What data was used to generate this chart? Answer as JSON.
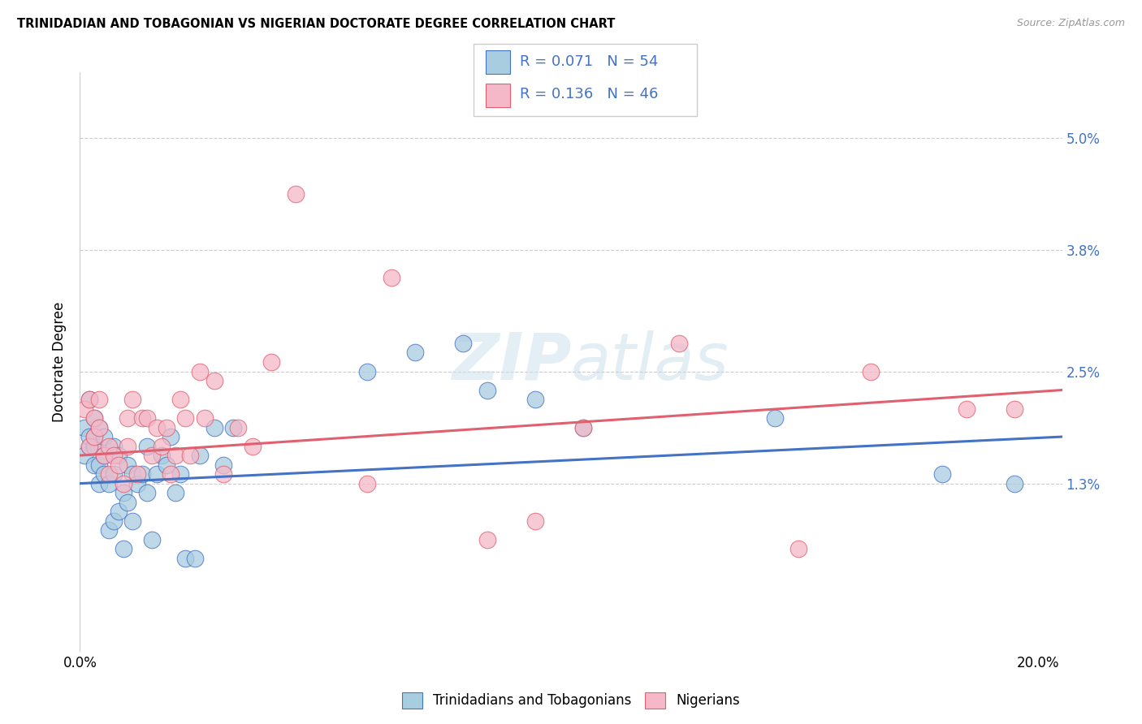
{
  "title": "TRINIDADIAN AND TOBAGONIAN VS NIGERIAN DOCTORATE DEGREE CORRELATION CHART",
  "source": "Source: ZipAtlas.com",
  "ylabel": "Doctorate Degree",
  "xlim": [
    0.0,
    0.205
  ],
  "ylim": [
    -0.005,
    0.057
  ],
  "ytick_vals": [
    0.013,
    0.025,
    0.038,
    0.05
  ],
  "ytick_labels": [
    "1.3%",
    "2.5%",
    "3.8%",
    "5.0%"
  ],
  "xtick_vals": [
    0.0,
    0.04,
    0.08,
    0.12,
    0.16,
    0.2
  ],
  "xtick_labels": [
    "0.0%",
    "",
    "",
    "",
    "",
    "20.0%"
  ],
  "legend_r1": "0.071",
  "legend_n1": "54",
  "legend_r2": "0.136",
  "legend_n2": "46",
  "blue_dot_color": "#a8cce0",
  "pink_dot_color": "#f4b8c8",
  "blue_line_color": "#4472c4",
  "pink_line_color": "#e06070",
  "label_color": "#4472c4",
  "watermark_color": "#d8e8f0",
  "blue_scatter_x": [
    0.001,
    0.001,
    0.002,
    0.002,
    0.002,
    0.003,
    0.003,
    0.003,
    0.003,
    0.004,
    0.004,
    0.004,
    0.005,
    0.005,
    0.005,
    0.006,
    0.006,
    0.007,
    0.007,
    0.007,
    0.008,
    0.008,
    0.009,
    0.009,
    0.01,
    0.01,
    0.011,
    0.011,
    0.012,
    0.013,
    0.014,
    0.014,
    0.015,
    0.016,
    0.017,
    0.018,
    0.019,
    0.02,
    0.021,
    0.022,
    0.024,
    0.025,
    0.028,
    0.03,
    0.032,
    0.06,
    0.07,
    0.08,
    0.085,
    0.095,
    0.105,
    0.145,
    0.18,
    0.195
  ],
  "blue_scatter_y": [
    0.016,
    0.019,
    0.017,
    0.018,
    0.022,
    0.015,
    0.017,
    0.018,
    0.02,
    0.013,
    0.015,
    0.019,
    0.014,
    0.016,
    0.018,
    0.008,
    0.013,
    0.009,
    0.014,
    0.017,
    0.01,
    0.016,
    0.006,
    0.012,
    0.011,
    0.015,
    0.009,
    0.014,
    0.013,
    0.014,
    0.012,
    0.017,
    0.007,
    0.014,
    0.016,
    0.015,
    0.018,
    0.012,
    0.014,
    0.005,
    0.005,
    0.016,
    0.019,
    0.015,
    0.019,
    0.025,
    0.027,
    0.028,
    0.023,
    0.022,
    0.019,
    0.02,
    0.014,
    0.013
  ],
  "pink_scatter_x": [
    0.001,
    0.002,
    0.002,
    0.003,
    0.003,
    0.004,
    0.004,
    0.005,
    0.006,
    0.006,
    0.007,
    0.008,
    0.009,
    0.01,
    0.01,
    0.011,
    0.012,
    0.013,
    0.014,
    0.015,
    0.016,
    0.017,
    0.018,
    0.019,
    0.02,
    0.021,
    0.022,
    0.023,
    0.025,
    0.026,
    0.028,
    0.03,
    0.033,
    0.036,
    0.04,
    0.045,
    0.06,
    0.065,
    0.085,
    0.095,
    0.105,
    0.125,
    0.15,
    0.165,
    0.185,
    0.195
  ],
  "pink_scatter_y": [
    0.021,
    0.017,
    0.022,
    0.018,
    0.02,
    0.019,
    0.022,
    0.016,
    0.014,
    0.017,
    0.016,
    0.015,
    0.013,
    0.017,
    0.02,
    0.022,
    0.014,
    0.02,
    0.02,
    0.016,
    0.019,
    0.017,
    0.019,
    0.014,
    0.016,
    0.022,
    0.02,
    0.016,
    0.025,
    0.02,
    0.024,
    0.014,
    0.019,
    0.017,
    0.026,
    0.044,
    0.013,
    0.035,
    0.007,
    0.009,
    0.019,
    0.028,
    0.006,
    0.025,
    0.021,
    0.021
  ],
  "blue_line_x0": 0.0,
  "blue_line_x1": 0.205,
  "blue_line_y0": 0.013,
  "blue_line_y1": 0.018,
  "pink_line_x0": 0.0,
  "pink_line_x1": 0.205,
  "pink_line_y0": 0.016,
  "pink_line_y1": 0.023
}
